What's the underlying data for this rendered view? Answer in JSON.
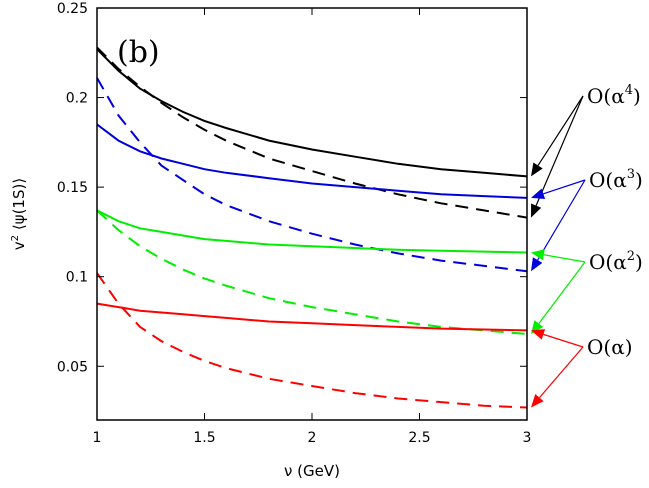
{
  "chart_data": {
    "type": "line",
    "panel_label": "(b)",
    "xlabel": "ν (GeV)",
    "ylabel": "v²⟨ψ(1S)⟩",
    "ylabel_parts": {
      "v": "v",
      "sup": "2",
      "rest": " ⟨ψ(1S)⟩"
    },
    "xlim": [
      1,
      3
    ],
    "ylim": [
      0.02,
      0.25
    ],
    "x_ticks": [
      1,
      1.5,
      2,
      2.5,
      3
    ],
    "x_tick_labels": [
      "1",
      "1.5",
      "2",
      "2.5",
      "3"
    ],
    "y_ticks": [
      0.05,
      0.1,
      0.15,
      0.2,
      0.25
    ],
    "y_tick_labels": [
      "0.05",
      "0.1",
      "0.15",
      "0.2",
      "0.25"
    ],
    "grid": false,
    "x": [
      1.0,
      1.1,
      1.2,
      1.3,
      1.4,
      1.5,
      1.6,
      1.8,
      2.0,
      2.2,
      2.4,
      2.6,
      2.8,
      3.0
    ],
    "series": [
      {
        "order": "α4",
        "style": "solid",
        "color": "#000000",
        "values": [
          0.227,
          0.215,
          0.205,
          0.198,
          0.192,
          0.187,
          0.183,
          0.176,
          0.171,
          0.167,
          0.163,
          0.16,
          0.158,
          0.156
        ]
      },
      {
        "order": "α4",
        "style": "dashed",
        "color": "#000000",
        "values": [
          0.228,
          0.216,
          0.206,
          0.197,
          0.189,
          0.182,
          0.176,
          0.166,
          0.159,
          0.152,
          0.146,
          0.141,
          0.137,
          0.133
        ]
      },
      {
        "order": "α3",
        "style": "solid",
        "color": "#0000dd",
        "values": [
          0.185,
          0.176,
          0.17,
          0.166,
          0.163,
          0.16,
          0.158,
          0.155,
          0.152,
          0.15,
          0.148,
          0.146,
          0.145,
          0.144
        ]
      },
      {
        "order": "α3",
        "style": "dashed",
        "color": "#0000dd",
        "values": [
          0.211,
          0.19,
          0.175,
          0.162,
          0.154,
          0.146,
          0.14,
          0.131,
          0.124,
          0.118,
          0.113,
          0.109,
          0.106,
          0.103
        ]
      },
      {
        "order": "α2",
        "style": "solid",
        "color": "#00ee00",
        "values": [
          0.137,
          0.131,
          0.127,
          0.125,
          0.123,
          0.121,
          0.12,
          0.118,
          0.117,
          0.116,
          0.115,
          0.1145,
          0.114,
          0.1135
        ]
      },
      {
        "order": "α2",
        "style": "dashed",
        "color": "#00ee00",
        "values": [
          0.137,
          0.126,
          0.117,
          0.11,
          0.104,
          0.099,
          0.095,
          0.088,
          0.083,
          0.079,
          0.075,
          0.072,
          0.07,
          0.068
        ]
      },
      {
        "order": "α",
        "style": "solid",
        "color": "#ff0000",
        "values": [
          0.085,
          0.083,
          0.081,
          0.08,
          0.079,
          0.078,
          0.077,
          0.075,
          0.074,
          0.073,
          0.072,
          0.071,
          0.0705,
          0.07
        ]
      },
      {
        "order": "α",
        "style": "dashed",
        "color": "#ff0000",
        "values": [
          0.102,
          0.085,
          0.072,
          0.064,
          0.058,
          0.053,
          0.049,
          0.043,
          0.039,
          0.035,
          0.032,
          0.03,
          0.028,
          0.027
        ]
      }
    ],
    "annotations": [
      {
        "base": "O(α",
        "sup": "4",
        "close": ")",
        "color": "#000000",
        "targets": [
          [
            3.0,
            0.156
          ],
          [
            3.0,
            0.133
          ]
        ]
      },
      {
        "base": "O(α",
        "sup": "3",
        "close": ")",
        "color": "#0000dd",
        "targets": [
          [
            3.0,
            0.144
          ],
          [
            3.0,
            0.103
          ]
        ]
      },
      {
        "base": "O(α",
        "sup": "2",
        "close": ")",
        "color": "#00ee00",
        "targets": [
          [
            3.0,
            0.1135
          ],
          [
            3.0,
            0.068
          ]
        ]
      },
      {
        "base": "O(α",
        "sup": "",
        "close": ")",
        "color": "#ff0000",
        "targets": [
          [
            3.0,
            0.07
          ],
          [
            3.0,
            0.027
          ]
        ]
      }
    ]
  }
}
